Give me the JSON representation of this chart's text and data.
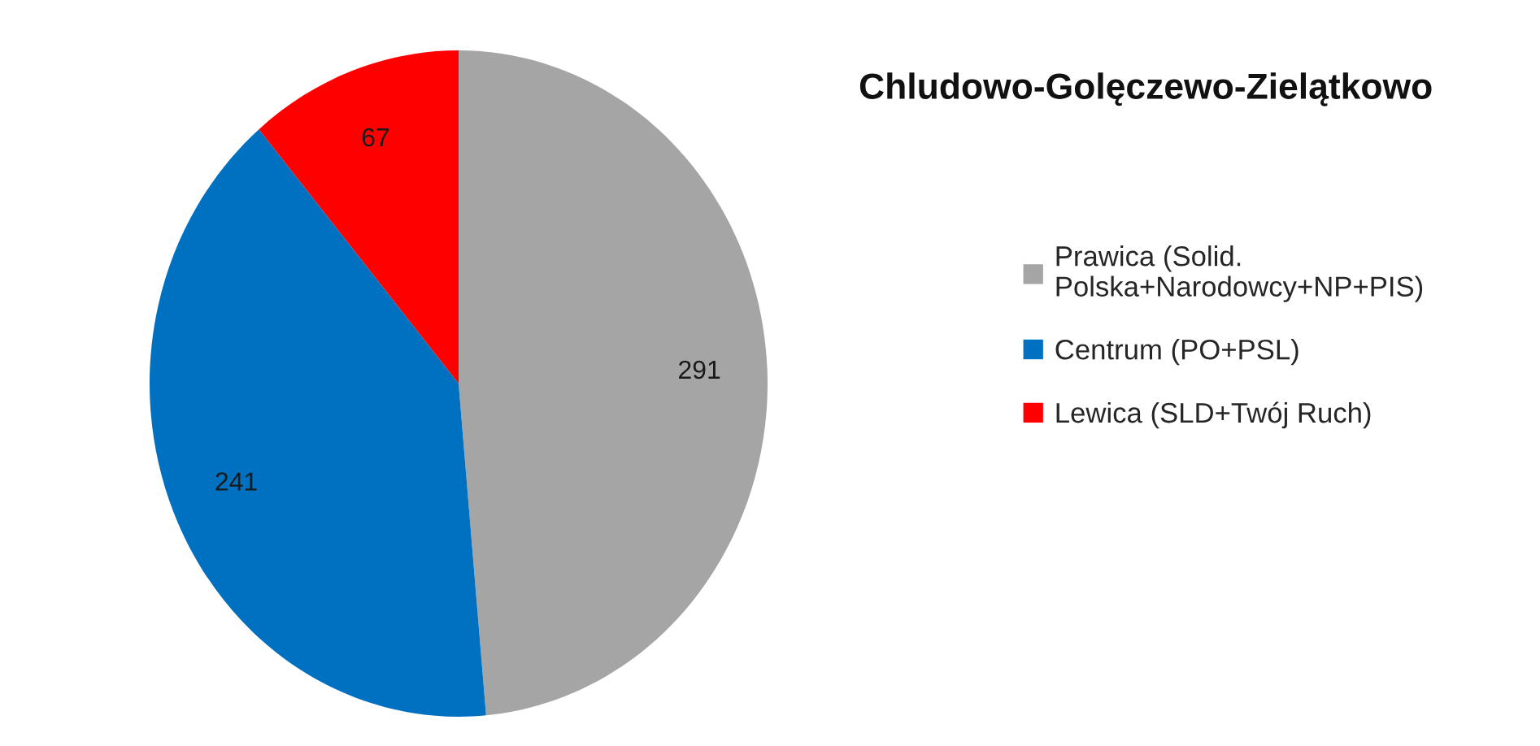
{
  "chart_data": {
    "type": "pie",
    "title": "Chludowo-Golęczewo-Zielątkowo",
    "categories": [
      "Prawica (Solid. Polska+Narodowcy+NP+PIS)",
      "Centrum (PO+PSL)",
      "Lewica (SLD+Twój Ruch)"
    ],
    "values": [
      291,
      241,
      67
    ],
    "colors": [
      "#a5a5a5",
      "#0070c0",
      "#ff0000"
    ],
    "data_labels": true,
    "legend": "right"
  }
}
